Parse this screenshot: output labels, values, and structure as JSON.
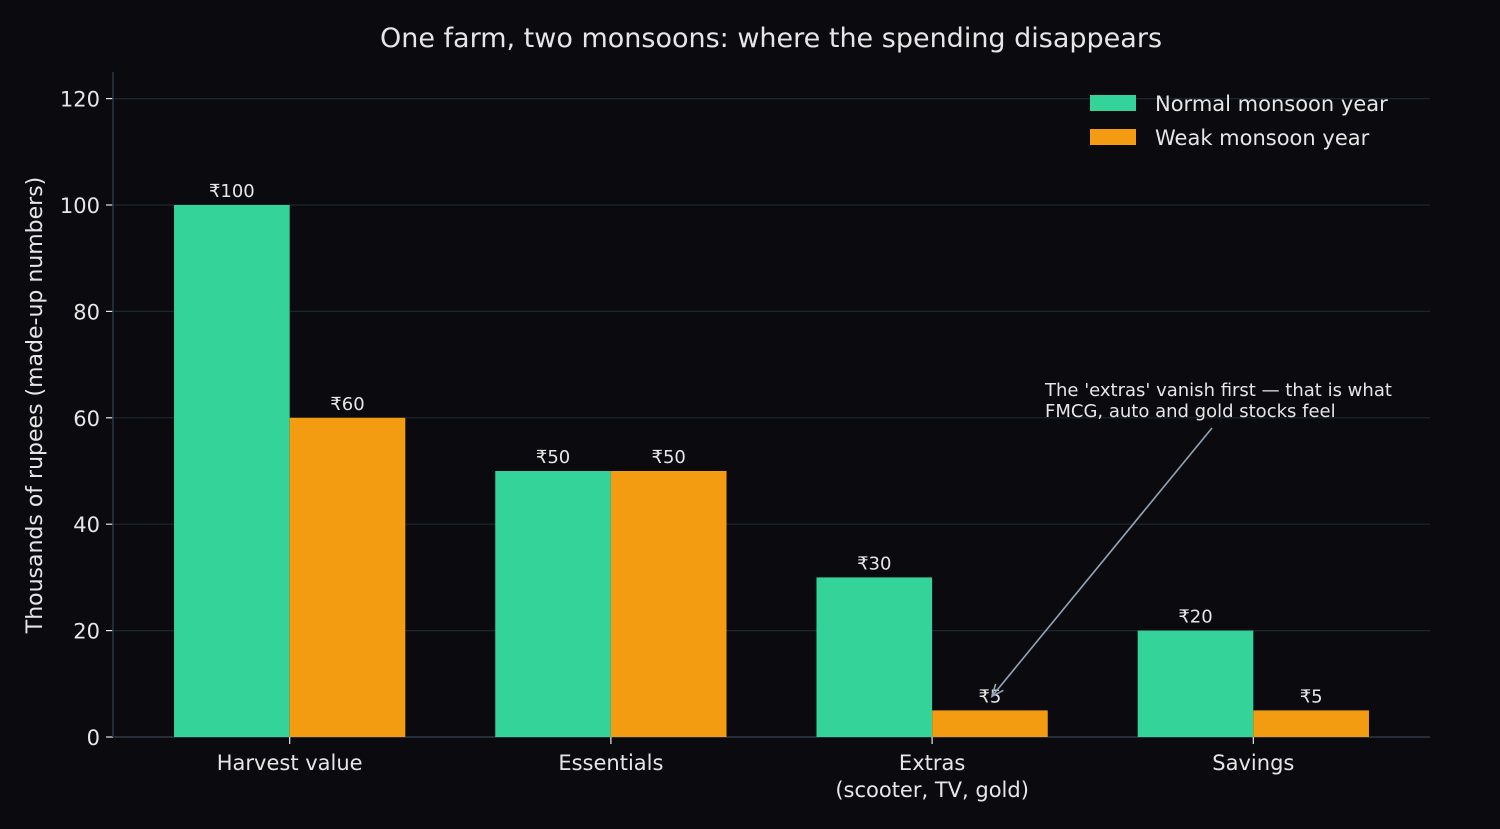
{
  "chart_data": {
    "type": "bar",
    "title": "One farm, two monsoons: where the spending disappears",
    "ylabel": "Thousands of rupees (made-up numbers)",
    "xlabel": "",
    "categories": [
      "Harvest value",
      "Essentials",
      "Extras\n(scooter, TV, gold)",
      "Savings"
    ],
    "series": [
      {
        "name": "Normal monsoon year",
        "values": [
          100,
          50,
          30,
          20
        ],
        "labels": [
          "₹100",
          "₹50",
          "₹30",
          "₹20"
        ],
        "color": "#34d399"
      },
      {
        "name": "Weak monsoon year",
        "values": [
          60,
          50,
          5,
          5
        ],
        "labels": [
          "₹60",
          "₹50",
          "₹5",
          "₹5"
        ],
        "color": "#f39c12"
      }
    ],
    "ylim": [
      0,
      125
    ],
    "yticks": [
      0,
      20,
      40,
      60,
      80,
      100,
      120
    ],
    "grid": true,
    "legend": "top-right",
    "annotation": {
      "text": [
        "The 'extras' vanish first — that is what",
        "FMCG, auto and gold stocks feel"
      ],
      "target_category": 2,
      "target_series": 1
    },
    "colors": {
      "background": "#0b0b0f",
      "text": "#e6e6e6",
      "grid": "#1c2630",
      "axis": "#2b3744",
      "arrow": "#94a3b8"
    }
  }
}
